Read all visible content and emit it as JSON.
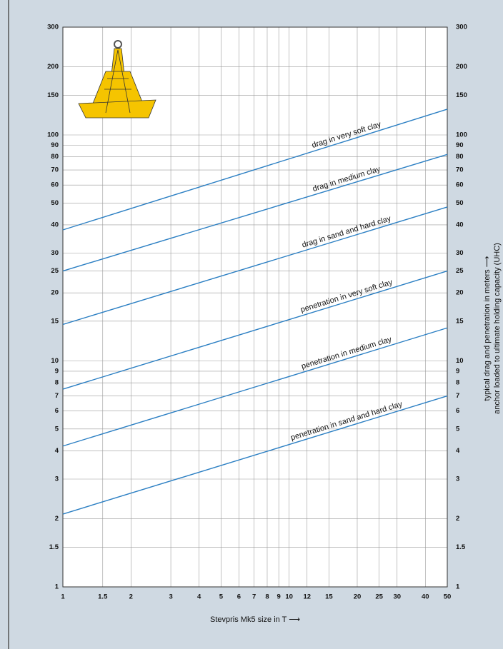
{
  "chart_data": {
    "type": "line",
    "x_label": "Stevpris Mk5 size in T ⟶",
    "y_label": [
      "typical drag and penetration in meters ⟶",
      "anchor loaded to ultimate holding capacity (UHC)"
    ],
    "x": [
      1,
      50
    ],
    "series": [
      {
        "name": "drag in very soft clay",
        "color": "#2b7fc3",
        "values": [
          38,
          130
        ]
      },
      {
        "name": "drag in medium clay",
        "color": "#2b7fc3",
        "values": [
          25,
          82
        ]
      },
      {
        "name": "drag in sand and hard clay",
        "color": "#2b7fc3",
        "values": [
          14.5,
          48
        ]
      },
      {
        "name": "penetration in very soft clay",
        "color": "#2b7fc3",
        "values": [
          7.5,
          25
        ]
      },
      {
        "name": "penetration in medium clay",
        "color": "#2b7fc3",
        "values": [
          4.2,
          14
        ]
      },
      {
        "name": "penetration in sand and hard clay",
        "color": "#2b7fc3",
        "values": [
          2.1,
          7
        ]
      }
    ],
    "xlim": [
      1,
      50
    ],
    "ylim": [
      1,
      300
    ],
    "x_log": true,
    "y_log": true,
    "grid": true,
    "xticks": [
      1,
      1.5,
      2,
      3,
      4,
      5,
      6,
      7,
      8,
      9,
      10,
      12,
      15,
      20,
      25,
      30,
      40,
      50
    ],
    "yticks": [
      1,
      1.5,
      2,
      3,
      4,
      5,
      6,
      7,
      8,
      9,
      10,
      15,
      20,
      25,
      30,
      40,
      50,
      60,
      70,
      80,
      90,
      100,
      150,
      200,
      300
    ]
  }
}
